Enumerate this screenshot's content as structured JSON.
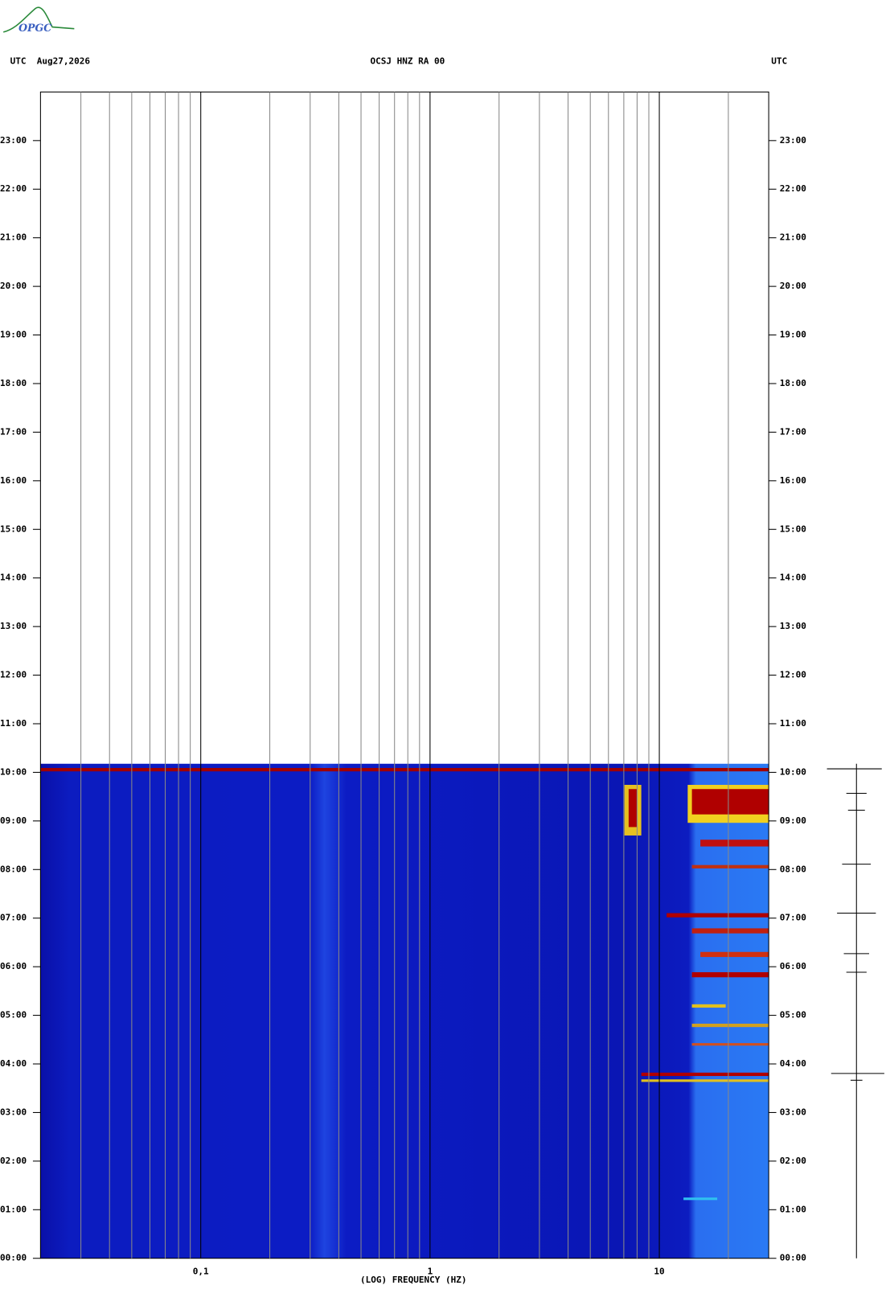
{
  "logo": "OPGC",
  "chart_data": {
    "type": "spectrogram",
    "header_left": "UTC  Aug27,2026",
    "title": "OCSJ HNZ RA 00",
    "header_right": "UTC",
    "xlabel": "(LOG) FREQUENCY (HZ)",
    "xscale": "log",
    "xlim": [
      0.02,
      30
    ],
    "xticks": [
      {
        "value": 0.1,
        "label": "0,1"
      },
      1,
      10
    ],
    "xgrid_minor": [
      0.03,
      0.04,
      0.05,
      0.06,
      0.07,
      0.08,
      0.09,
      0.2,
      0.3,
      0.4,
      0.5,
      0.6,
      0.7,
      0.8,
      0.9,
      2,
      3,
      4,
      5,
      6,
      7,
      8,
      9,
      20
    ],
    "ylim": [
      0,
      24
    ],
    "yticks": [
      {
        "value": 0,
        "label": "00:00"
      },
      {
        "value": 1,
        "label": "01:00"
      },
      {
        "value": 2,
        "label": "02:00"
      },
      {
        "value": 3,
        "label": "03:00"
      },
      {
        "value": 4,
        "label": "04:00"
      },
      {
        "value": 5,
        "label": "05:00"
      },
      {
        "value": 6,
        "label": "06:00"
      },
      {
        "value": 7,
        "label": "07:00"
      },
      {
        "value": 8,
        "label": "08:00"
      },
      {
        "value": 9,
        "label": "09:00"
      },
      {
        "value": 10,
        "label": "10:00"
      },
      {
        "value": 11,
        "label": "11:00"
      },
      {
        "value": 12,
        "label": "12:00"
      },
      {
        "value": 13,
        "label": "13:00"
      },
      {
        "value": 14,
        "label": "14:00"
      },
      {
        "value": 15,
        "label": "15:00"
      },
      {
        "value": 16,
        "label": "16:00"
      },
      {
        "value": 17,
        "label": "17:00"
      },
      {
        "value": 18,
        "label": "18:00"
      },
      {
        "value": 19,
        "label": "19:00"
      },
      {
        "value": 20,
        "label": "20:00"
      },
      {
        "value": 21,
        "label": "21:00"
      },
      {
        "value": 22,
        "label": "22:00"
      },
      {
        "value": 23,
        "label": "23:00"
      }
    ]
  }
}
